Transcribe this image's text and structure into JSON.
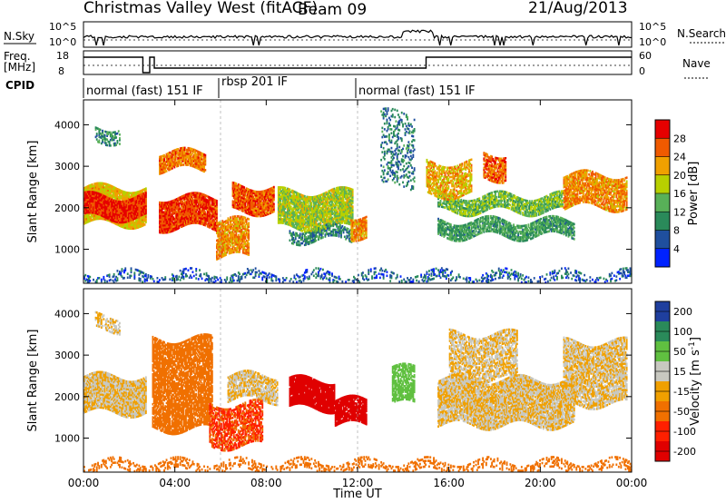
{
  "header": {
    "station": "Christmas Valley West (fitACF)",
    "beam": "Beam 09",
    "date": "21/Aug/2013"
  },
  "noise_panel": {
    "left_label": "N.Sky",
    "right_label": "N.Search",
    "left_ticks": [
      "10^5",
      "10^0"
    ],
    "right_ticks": [
      "10^5",
      "10^0"
    ]
  },
  "freq_panel": {
    "left_label_1": "Freq.",
    "left_label_2": "[MHz]",
    "right_label": "Nave",
    "left_ticks": [
      "18",
      "8"
    ],
    "right_ticks": [
      "60",
      "0"
    ]
  },
  "cpid": {
    "label": "CPID",
    "modes": [
      {
        "name": "normal (fast) 151 IF",
        "start_hour": 0.0,
        "end_hour": 6.0
      },
      {
        "name": "rbsp 201 IF",
        "start_hour": 6.0,
        "end_hour": 12.0
      },
      {
        "name": "normal (fast) 151 IF",
        "start_hour": 12.0,
        "end_hour": 24.0
      }
    ]
  },
  "colors": {
    "power": [
      "#0022ff",
      "#1f4f9e",
      "#2a8a5a",
      "#58b058",
      "#b8d000",
      "#f0a000",
      "#f05a00",
      "#e60000"
    ],
    "velocity": [
      "#1f3f9e",
      "#2a8a5a",
      "#60c040",
      "#c8c8c0",
      "#f0a000",
      "#f07000",
      "#ff2000",
      "#e00000"
    ]
  },
  "chart_data": [
    {
      "type": "heatmap",
      "title": "Power",
      "xlabel": "",
      "ylabel": "Slant Range [km]",
      "x_ticks": [
        "00:00",
        "04:00",
        "08:00",
        "12:00",
        "16:00",
        "20:00",
        "00:00"
      ],
      "x_tick_hours": [
        0,
        4,
        8,
        12,
        16,
        20,
        24
      ],
      "y_ticks": [
        1000,
        2000,
        3000,
        4000
      ],
      "xlim": [
        0,
        24
      ],
      "ylim": [
        180,
        4600
      ],
      "colorbar": {
        "label": "Power [dB]",
        "ticks": [
          "4",
          "8",
          "12",
          "16",
          "20",
          "24",
          "28"
        ],
        "range": [
          0,
          30
        ]
      },
      "bands": [
        {
          "x": [
            0.0,
            2.7
          ],
          "r": [
            1600,
            2500
          ],
          "v": 19,
          "d": 0.95
        },
        {
          "x": [
            0.0,
            2.7
          ],
          "r": [
            1750,
            2250
          ],
          "v": 27,
          "d": 1.0
        },
        {
          "x": [
            0.5,
            1.6
          ],
          "r": [
            3600,
            3950
          ],
          "v": 10,
          "d": 0.6
        },
        {
          "x": [
            3.3,
            5.8
          ],
          "r": [
            1500,
            2250
          ],
          "v": 26,
          "d": 0.95
        },
        {
          "x": [
            3.3,
            5.3
          ],
          "r": [
            2900,
            3350
          ],
          "v": 23,
          "d": 0.9
        },
        {
          "x": [
            5.8,
            7.2
          ],
          "r": [
            800,
            1700
          ],
          "v": 22,
          "d": 0.8
        },
        {
          "x": [
            6.5,
            8.3
          ],
          "r": [
            1900,
            2500
          ],
          "v": 25,
          "d": 0.95
        },
        {
          "x": [
            8.5,
            11.8
          ],
          "r": [
            1500,
            2400
          ],
          "v": 16,
          "d": 0.9
        },
        {
          "x": [
            9.0,
            11.8
          ],
          "r": [
            1200,
            1500
          ],
          "v": 9,
          "d": 0.6
        },
        {
          "x": [
            11.7,
            12.4
          ],
          "r": [
            1300,
            1800
          ],
          "v": 22,
          "d": 0.9
        },
        {
          "x": [
            15.5,
            21.0
          ],
          "r": [
            1900,
            2300
          ],
          "v": 14,
          "d": 0.8
        },
        {
          "x": [
            15.5,
            21.5
          ],
          "r": [
            1300,
            1700
          ],
          "v": 11,
          "d": 0.8
        },
        {
          "x": [
            15.0,
            17.0
          ],
          "r": [
            2300,
            3100
          ],
          "v": 20,
          "d": 0.7
        },
        {
          "x": [
            17.5,
            18.5
          ],
          "r": [
            2700,
            3300
          ],
          "v": 24,
          "d": 0.8
        },
        {
          "x": [
            21.0,
            23.8
          ],
          "r": [
            2000,
            2800
          ],
          "v": 22,
          "d": 0.8
        },
        {
          "x": [
            13.0,
            14.5
          ],
          "r": [
            2500,
            4300
          ],
          "v": 8,
          "d": 0.25
        },
        {
          "x": [
            0.0,
            24.0
          ],
          "r": [
            180,
            450
          ],
          "v": 6,
          "d": 0.35
        }
      ]
    },
    {
      "type": "heatmap",
      "title": "Velocity",
      "xlabel": "Time UT",
      "ylabel": "Slant Range [km]",
      "x_ticks": [
        "00:00",
        "04:00",
        "08:00",
        "12:00",
        "16:00",
        "20:00",
        "00:00"
      ],
      "x_tick_hours": [
        0,
        4,
        8,
        12,
        16,
        20,
        24
      ],
      "y_ticks": [
        1000,
        2000,
        3000,
        4000
      ],
      "xlim": [
        0,
        24
      ],
      "ylim": [
        180,
        4600
      ],
      "colorbar": {
        "label": "Velocity [m s^-1]",
        "ticks": [
          "200",
          "100",
          "50",
          "15",
          "-15",
          "-50",
          "-100",
          "-200"
        ],
        "range": [
          -250,
          250
        ]
      },
      "bands": [
        {
          "x": [
            0.0,
            2.7
          ],
          "r": [
            1600,
            2500
          ],
          "v": 0,
          "d": 0.95
        },
        {
          "x": [
            0.5,
            1.6
          ],
          "r": [
            3600,
            3950
          ],
          "v": 0,
          "d": 0.5
        },
        {
          "x": [
            3.0,
            5.6
          ],
          "r": [
            1200,
            3400
          ],
          "v": -60,
          "d": 0.8
        },
        {
          "x": [
            5.5,
            7.8
          ],
          "r": [
            800,
            1800
          ],
          "v": -80,
          "d": 0.7
        },
        {
          "x": [
            6.3,
            8.5
          ],
          "r": [
            1900,
            2500
          ],
          "v": 0,
          "d": 0.8
        },
        {
          "x": [
            9.0,
            11.0
          ],
          "r": [
            1700,
            2400
          ],
          "v": -200,
          "d": 0.95
        },
        {
          "x": [
            11.0,
            12.4
          ],
          "r": [
            1300,
            1900
          ],
          "v": -180,
          "d": 0.9
        },
        {
          "x": [
            13.5,
            14.5
          ],
          "r": [
            1800,
            2700
          ],
          "v": 60,
          "d": 0.7
        },
        {
          "x": [
            15.5,
            21.5
          ],
          "r": [
            1300,
            2400
          ],
          "v": 0,
          "d": 0.9
        },
        {
          "x": [
            16.0,
            19.0
          ],
          "r": [
            2400,
            3500
          ],
          "v": 0,
          "d": 0.7
        },
        {
          "x": [
            21.0,
            23.8
          ],
          "r": [
            1800,
            3300
          ],
          "v": 0,
          "d": 0.8
        },
        {
          "x": [
            0.0,
            24.0
          ],
          "r": [
            180,
            450
          ],
          "v": -60,
          "d": 0.35
        }
      ]
    }
  ]
}
